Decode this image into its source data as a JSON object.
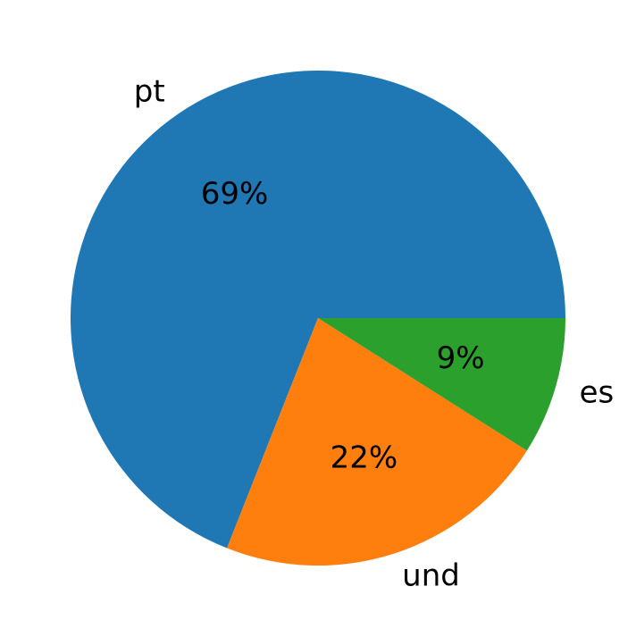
{
  "chart_data": {
    "type": "pie",
    "categories": [
      "pt",
      "und",
      "es"
    ],
    "values": [
      69,
      22,
      9
    ],
    "value_labels": [
      "69%",
      "22%",
      "9%"
    ],
    "colors": [
      "#1f77b4",
      "#ff7f0e",
      "#2ca02c"
    ]
  }
}
